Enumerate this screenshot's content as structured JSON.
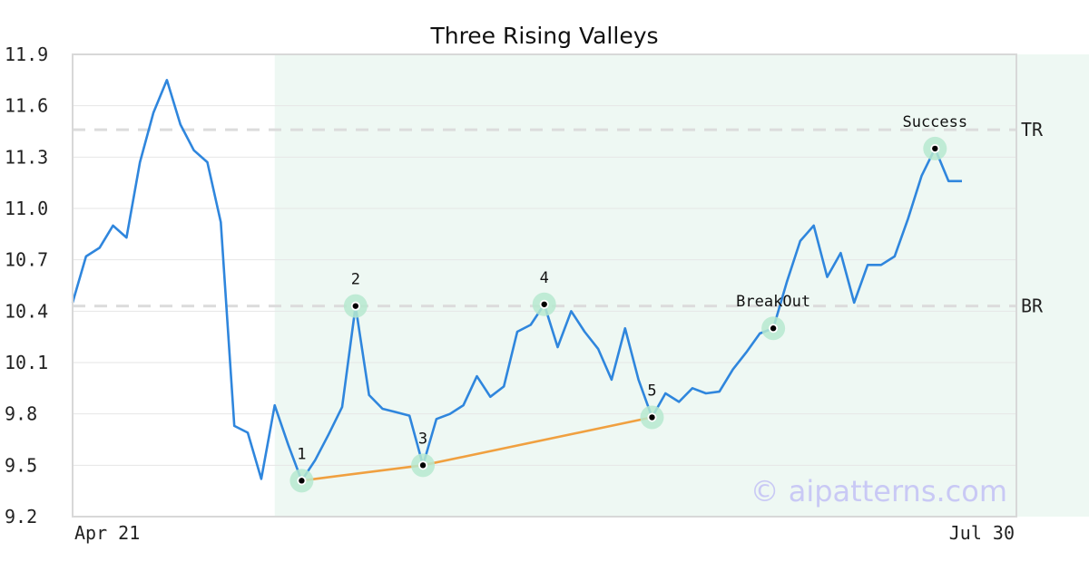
{
  "chart_data": {
    "type": "line",
    "title": "Three Rising Valleys",
    "x_start_label": "Apr 21",
    "x_end_label": "Jul 30",
    "ylim": [
      9.2,
      11.9
    ],
    "yticks": [
      "9.2",
      "9.5",
      "9.8",
      "10.1",
      "10.4",
      "10.7",
      "11.0",
      "11.3",
      "11.6",
      "11.9"
    ],
    "grid": true,
    "pattern_region": [
      15,
      80
    ],
    "series": [
      {
        "color": "#2f86dd",
        "values": [
          10.45,
          10.72,
          10.77,
          10.9,
          10.83,
          11.27,
          11.56,
          11.75,
          11.49,
          11.34,
          11.27,
          10.92,
          9.73,
          9.69,
          9.42,
          9.85,
          9.62,
          9.41,
          9.53,
          9.68,
          9.84,
          10.43,
          9.91,
          9.83,
          9.81,
          9.79,
          9.5,
          9.77,
          9.8,
          9.85,
          10.02,
          9.9,
          9.96,
          10.28,
          10.32,
          10.44,
          10.19,
          10.4,
          10.28,
          10.18,
          10.0,
          10.3,
          10.0,
          9.78,
          9.92,
          9.87,
          9.95,
          9.92,
          9.93,
          10.06,
          10.16,
          10.27,
          10.3,
          10.57,
          10.81,
          10.9,
          10.6,
          10.74,
          10.45,
          10.67,
          10.67,
          10.72,
          10.94,
          11.19,
          11.35,
          11.16,
          11.16
        ]
      }
    ],
    "levels": [
      {
        "label": "TR",
        "value": 11.46
      },
      {
        "label": "BR",
        "value": 10.43
      }
    ],
    "trendline": {
      "color": "#f0a040",
      "points": [
        [
          17,
          9.41
        ],
        [
          26,
          9.5
        ],
        [
          43,
          9.78
        ]
      ]
    },
    "markers": [
      {
        "label": "1",
        "index": 17,
        "value": 9.41
      },
      {
        "label": "2",
        "index": 21,
        "value": 10.43
      },
      {
        "label": "3",
        "index": 26,
        "value": 9.5
      },
      {
        "label": "4",
        "index": 35,
        "value": 10.44
      },
      {
        "label": "5",
        "index": 43,
        "value": 9.78
      },
      {
        "label": "BreakOut",
        "index": 52,
        "value": 10.3
      },
      {
        "label": "Success",
        "index": 64,
        "value": 11.35
      }
    ],
    "watermark": "© aipatterns.com"
  }
}
